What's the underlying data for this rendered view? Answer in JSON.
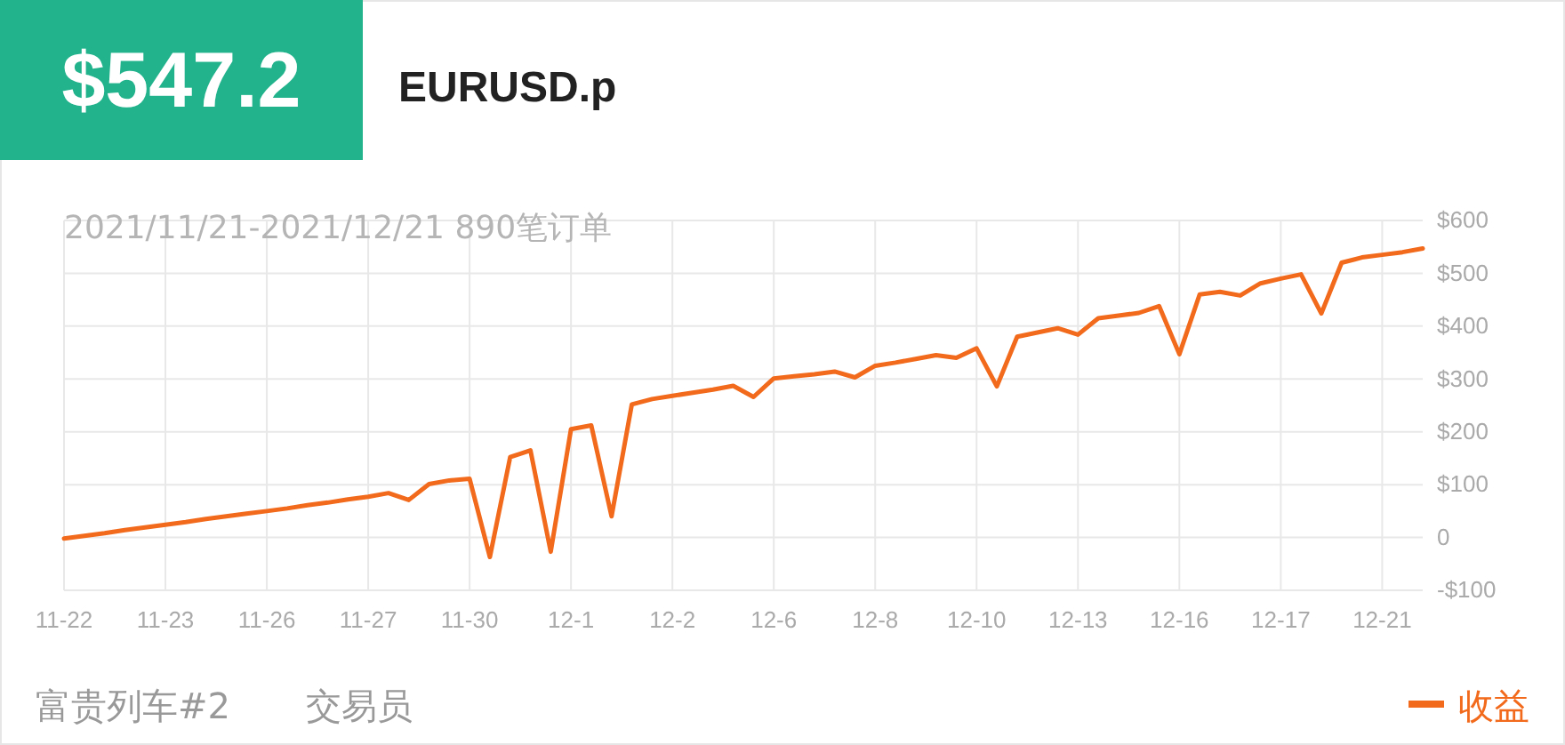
{
  "chart_data": {
    "type": "line",
    "title": "EURUSD.p",
    "subtitle": "2021/11/21-2021/12/21 890笔订单",
    "annotations": [
      "$547.2",
      "富贵列车#2",
      "交易员"
    ],
    "categories": [
      "11-22",
      null,
      null,
      null,
      null,
      "11-23",
      null,
      null,
      null,
      null,
      "11-26",
      null,
      null,
      null,
      null,
      "11-27",
      null,
      null,
      null,
      null,
      "11-30",
      null,
      null,
      null,
      null,
      "12-1",
      null,
      null,
      null,
      null,
      "12-2",
      null,
      null,
      null,
      null,
      "12-6",
      null,
      null,
      null,
      null,
      "12-8",
      null,
      null,
      null,
      null,
      "12-10",
      null,
      null,
      null,
      null,
      "12-13",
      null,
      null,
      null,
      null,
      "12-16",
      null,
      null,
      null,
      null,
      "12-17",
      null,
      null,
      null,
      null,
      "12-21",
      null,
      null
    ],
    "series": [
      {
        "name": "收益",
        "color": "#f26b1d",
        "values": [
          -2,
          3,
          8,
          14,
          19,
          24,
          29,
          35,
          40,
          45,
          50,
          55,
          61,
          66,
          72,
          77,
          84,
          71,
          101,
          108,
          111,
          -37,
          152,
          165,
          -27,
          205,
          212,
          40,
          252,
          262,
          268,
          274,
          280,
          287,
          266,
          301,
          305,
          309,
          314,
          303,
          325,
          331,
          338,
          345,
          340,
          358,
          286,
          380,
          388,
          396,
          384,
          415,
          420,
          425,
          438,
          347,
          460,
          465,
          458,
          481,
          490,
          498,
          424,
          520,
          530,
          535,
          540,
          547
        ]
      }
    ],
    "ylim": [
      -100,
      600
    ],
    "yticks": [
      {
        "value": -100,
        "label": "-$100"
      },
      0,
      {
        "value": 100,
        "label": "$100"
      },
      {
        "value": 200,
        "label": "$200"
      },
      {
        "value": 300,
        "label": "$300"
      },
      {
        "value": 400,
        "label": "$400"
      },
      {
        "value": 500,
        "label": "$500"
      },
      {
        "value": 600,
        "label": "$600"
      }
    ],
    "grid": true,
    "legend": "bottom right",
    "marker": "none",
    "line_style": "solid"
  }
}
